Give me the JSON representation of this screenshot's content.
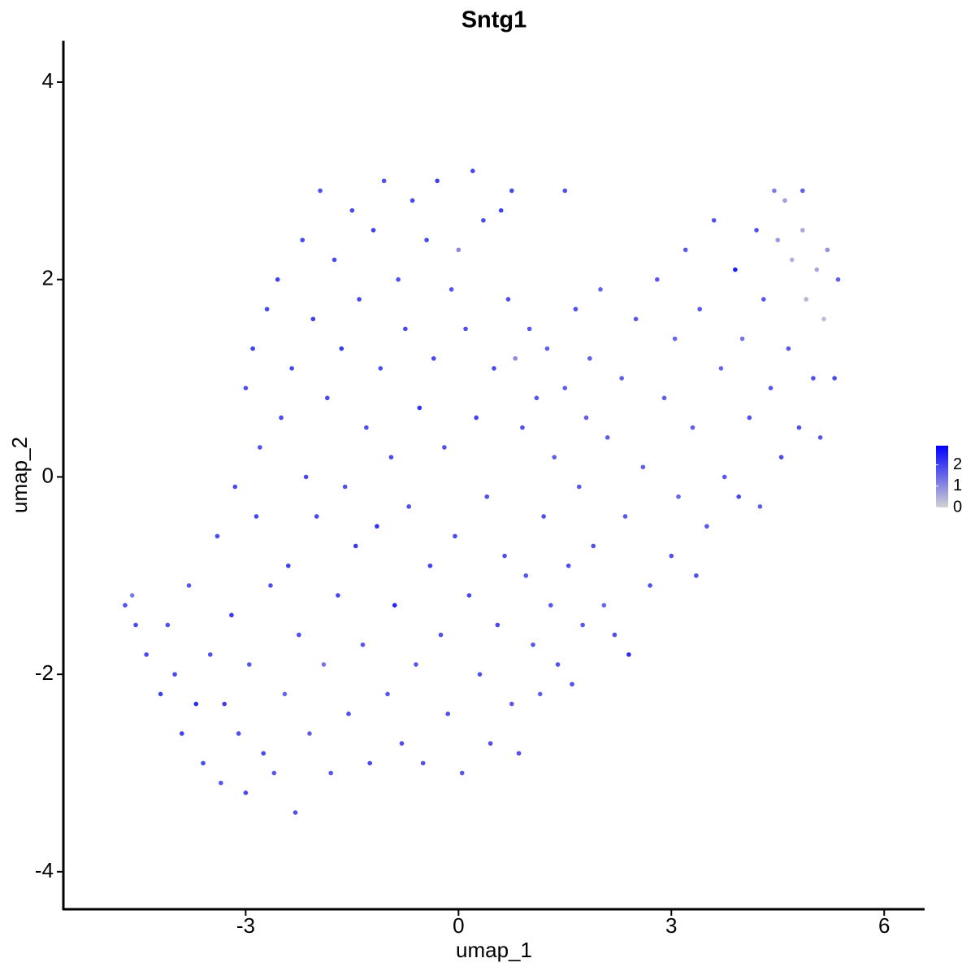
{
  "chart_data": {
    "type": "scatter",
    "title": "Sntg1",
    "x_label": "umap_1",
    "y_label": "umap_2",
    "xlim": [
      -5.57,
      6.57
    ],
    "ylim": [
      -4.38,
      4.42
    ],
    "xticks": [
      -3,
      0,
      3,
      6
    ],
    "yticks": [
      -4,
      -2,
      0,
      2,
      4
    ],
    "color_low": "#d3d3d3",
    "color_high": "#0000ff",
    "colorbar": {
      "lim": [
        0,
        2.9
      ],
      "ticks": [
        0,
        1,
        2
      ]
    },
    "x": [
      -4.7,
      -4.6,
      -4.55,
      -4.4,
      -4.2,
      -4.1,
      -4.0,
      -3.9,
      -3.8,
      -3.7,
      -3.6,
      -3.5,
      -3.4,
      -3.35,
      -3.3,
      -3.2,
      -3.15,
      -3.1,
      -3.0,
      -3.0,
      -2.95,
      -2.9,
      -2.85,
      -2.8,
      -2.75,
      -2.7,
      -2.65,
      -2.6,
      -2.55,
      -2.5,
      -2.45,
      -2.4,
      -2.35,
      -2.3,
      -2.25,
      -2.2,
      -2.15,
      -2.1,
      -2.05,
      -2.0,
      -1.95,
      -1.9,
      -1.85,
      -1.8,
      -1.75,
      -1.7,
      -1.65,
      -1.6,
      -1.55,
      -1.5,
      -1.45,
      -1.4,
      -1.35,
      -1.3,
      -1.25,
      -1.2,
      -1.15,
      -1.1,
      -1.05,
      -1.0,
      -0.95,
      -0.9,
      -0.85,
      -0.8,
      -0.75,
      -0.7,
      -0.65,
      -0.6,
      -0.55,
      -0.5,
      -0.45,
      -0.4,
      -0.35,
      -0.3,
      -0.25,
      -0.2,
      -0.15,
      -0.1,
      -0.05,
      0.0,
      0.05,
      0.1,
      0.15,
      0.2,
      0.25,
      0.3,
      0.35,
      0.4,
      0.45,
      0.5,
      0.55,
      0.6,
      0.65,
      0.7,
      0.75,
      0.8,
      0.85,
      0.9,
      0.95,
      1.0,
      1.05,
      1.1,
      1.15,
      1.2,
      1.25,
      1.3,
      1.35,
      1.4,
      1.5,
      1.55,
      1.6,
      1.65,
      1.7,
      1.75,
      1.8,
      1.85,
      1.9,
      2.0,
      2.05,
      2.1,
      2.2,
      2.3,
      2.35,
      2.4,
      2.5,
      2.6,
      2.7,
      2.8,
      2.9,
      3.0,
      3.05,
      3.1,
      3.2,
      3.3,
      3.35,
      3.4,
      3.5,
      3.6,
      3.7,
      3.75,
      3.9,
      3.95,
      4.0,
      4.1,
      4.2,
      4.25,
      4.3,
      4.4,
      4.45,
      4.5,
      4.55,
      4.6,
      4.65,
      4.7,
      4.8,
      4.85,
      4.9,
      5.0,
      5.05,
      5.1,
      5.15,
      5.2,
      5.3,
      5.35,
      4.85,
      0.75,
      1.5
    ],
    "values": [
      -1.3,
      -1.2,
      -1.5,
      -1.8,
      -2.2,
      -1.5,
      -2.0,
      -2.6,
      -1.1,
      -2.3,
      -2.9,
      -1.8,
      -0.6,
      -3.1,
      -2.3,
      -1.4,
      -0.1,
      -2.6,
      0.9,
      -3.2,
      -1.9,
      1.3,
      -0.4,
      0.3,
      -2.8,
      1.7,
      -1.1,
      -3.0,
      2.0,
      0.6,
      -2.2,
      -0.9,
      1.1,
      -3.4,
      -1.6,
      2.4,
      0.0,
      -2.6,
      1.6,
      -0.4,
      2.9,
      -1.9,
      0.8,
      -3.0,
      2.2,
      -1.2,
      1.3,
      -0.1,
      -2.4,
      2.7,
      -0.7,
      1.8,
      -1.7,
      0.5,
      -2.9,
      2.5,
      -0.5,
      1.1,
      3.0,
      -2.2,
      0.2,
      -1.3,
      2.0,
      -2.7,
      1.5,
      -0.3,
      2.8,
      -1.9,
      0.7,
      -2.9,
      2.4,
      -0.9,
      1.2,
      3.0,
      -1.6,
      0.3,
      -2.4,
      1.9,
      -0.6,
      2.3,
      -3.0,
      1.5,
      -1.2,
      3.1,
      0.6,
      -2.0,
      2.6,
      -0.2,
      -2.7,
      1.1,
      -1.5,
      2.7,
      -0.8,
      1.8,
      -2.3,
      1.2,
      -2.8,
      0.5,
      -1.0,
      1.5,
      -1.7,
      0.8,
      -2.2,
      -0.4,
      1.3,
      -1.3,
      0.2,
      -1.9,
      0.9,
      -0.9,
      -2.1,
      1.7,
      -0.1,
      -1.5,
      0.6,
      1.2,
      -0.7,
      1.9,
      -1.3,
      0.4,
      -1.6,
      1.0,
      -0.4,
      -1.8,
      1.6,
      0.1,
      -1.1,
      2.0,
      0.8,
      -0.8,
      1.4,
      -0.2,
      2.3,
      0.5,
      -1.0,
      1.7,
      -0.5,
      2.6,
      1.1,
      0.0,
      2.1,
      -0.2,
      1.4,
      0.6,
      2.5,
      -0.3,
      1.8,
      0.9,
      2.9,
      2.4,
      0.2,
      2.8,
      1.3,
      2.2,
      0.5,
      2.5,
      1.8,
      1.0,
      2.1,
      0.4,
      1.6,
      2.3,
      1.0,
      2.0,
      2.9,
      2.9,
      2.9
    ],
    "expression": [
      1.8,
      1.2,
      1.9,
      1.9,
      2.0,
      1.8,
      1.9,
      2.0,
      1.7,
      2.3,
      1.9,
      1.8,
      1.9,
      1.7,
      2.0,
      2.1,
      1.9,
      1.8,
      1.8,
      1.9,
      1.7,
      2.0,
      1.9,
      1.8,
      1.9,
      1.9,
      1.8,
      1.7,
      2.0,
      1.9,
      1.5,
      2.0,
      1.9,
      1.8,
      1.8,
      1.9,
      1.9,
      1.6,
      2.0,
      1.9,
      1.8,
      1.3,
      1.9,
      1.7,
      1.9,
      1.9,
      2.1,
      1.8,
      1.8,
      1.9,
      2.1,
      1.9,
      1.7,
      1.8,
      1.9,
      2.0,
      2.2,
      1.8,
      1.8,
      1.7,
      1.9,
      2.4,
      1.8,
      1.8,
      1.9,
      1.8,
      1.9,
      1.7,
      2.2,
      1.8,
      1.9,
      2.0,
      1.9,
      2.0,
      1.8,
      1.8,
      1.8,
      1.7,
      1.9,
      1.0,
      1.7,
      1.8,
      1.9,
      1.9,
      2.0,
      1.8,
      1.9,
      1.8,
      1.8,
      1.9,
      1.9,
      2.0,
      1.8,
      1.8,
      1.7,
      1.0,
      1.8,
      1.8,
      1.7,
      1.7,
      1.7,
      1.7,
      1.6,
      1.8,
      1.6,
      1.7,
      1.6,
      1.8,
      1.6,
      1.8,
      1.8,
      1.8,
      1.7,
      1.7,
      1.6,
      1.6,
      1.8,
      1.5,
      1.5,
      1.6,
      1.8,
      1.6,
      1.7,
      2.3,
      1.7,
      1.6,
      1.8,
      1.7,
      1.6,
      1.8,
      1.5,
      1.5,
      1.7,
      1.6,
      1.8,
      1.7,
      1.7,
      1.8,
      1.5,
      1.7,
      2.5,
      1.9,
      1.3,
      1.8,
      1.8,
      1.6,
      1.7,
      1.7,
      1.2,
      0.8,
      1.9,
      0.7,
      1.7,
      0.5,
      1.8,
      0.6,
      0.4,
      1.8,
      0.6,
      1.7,
      0.3,
      0.9,
      1.9,
      1.6,
      1.6,
      1.9,
      1.8
    ]
  }
}
